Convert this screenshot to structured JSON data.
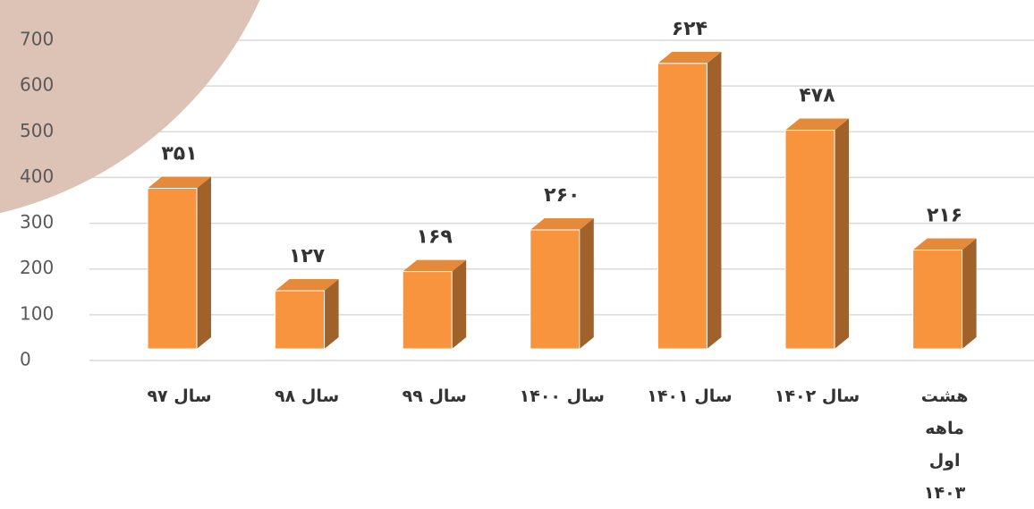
{
  "chart_data": {
    "type": "bar3d",
    "categories": [
      "سال ۹۷",
      "سال ۹۸",
      "سال ۹۹",
      "سال ۱۴۰۰",
      "سال ۱۴۰۱",
      "سال ۱۴۰۲",
      "هشت ماهه اول ۱۴۰۳"
    ],
    "values": [
      351,
      127,
      169,
      260,
      624,
      478,
      216
    ],
    "value_labels": [
      "۳۵۱",
      "۱۲۷",
      "۱۶۹",
      "۲۶۰",
      "۶۲۴",
      "۴۷۸",
      "۲۱۶"
    ],
    "color": "#f7943d",
    "ylim": [
      0,
      700
    ],
    "yticks": [
      0,
      100,
      200,
      300,
      400,
      500,
      600,
      700
    ],
    "grid": true
  }
}
